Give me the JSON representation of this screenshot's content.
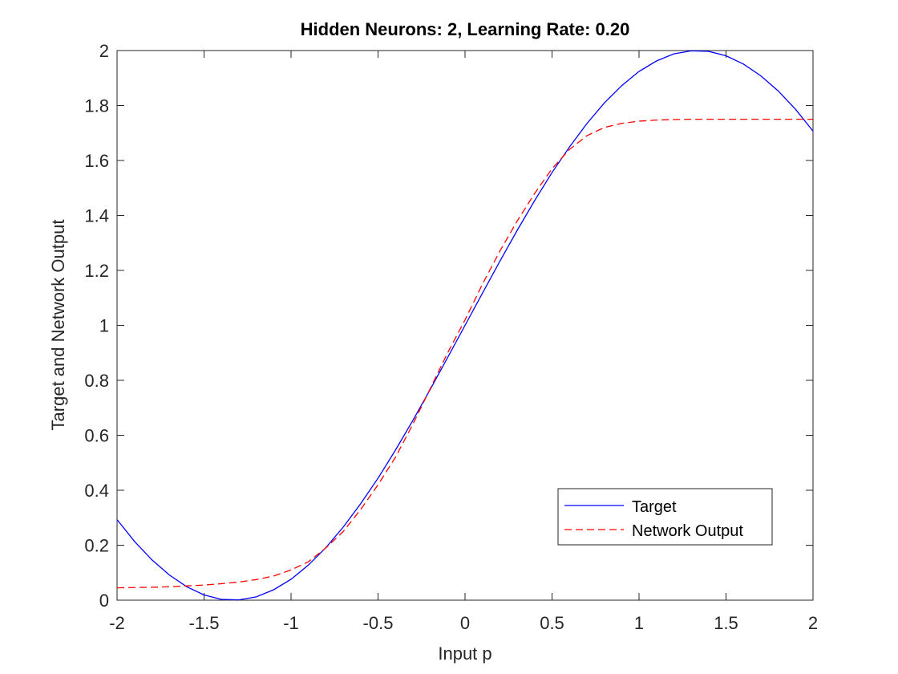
{
  "chart_data": {
    "type": "line",
    "title": "Hidden Neurons: 2, Learning Rate: 0.20",
    "x_label": "Input p",
    "y_label": "Target and Network Output",
    "x": [
      -2,
      -1.9,
      -1.8,
      -1.7,
      -1.6,
      -1.5,
      -1.4,
      -1.3,
      -1.2,
      -1.1,
      -1,
      -0.9,
      -0.8,
      -0.7,
      -0.6,
      -0.5,
      -0.4,
      -0.3,
      -0.2,
      -0.1,
      0,
      0.1,
      0.2,
      0.3,
      0.4,
      0.5,
      0.6,
      0.7,
      0.8,
      0.9,
      1,
      1.1,
      1.2,
      1.3,
      1.4,
      1.5,
      1.6,
      1.7,
      1.8,
      1.9,
      2
    ],
    "series": [
      {
        "name": "Target",
        "color": "#0000ff",
        "dash": false,
        "values": [
          0.293,
          0.214,
          0.147,
          0.092,
          0.049,
          0.019,
          0.003,
          0.001,
          0.012,
          0.038,
          0.076,
          0.128,
          0.191,
          0.266,
          0.351,
          0.444,
          0.546,
          0.654,
          0.767,
          0.883,
          1,
          1.117,
          1.233,
          1.346,
          1.454,
          1.556,
          1.649,
          1.734,
          1.809,
          1.872,
          1.924,
          1.962,
          1.988,
          1.999,
          1.997,
          1.981,
          1.951,
          1.908,
          1.853,
          1.786,
          1.707
        ]
      },
      {
        "name": "Network Output",
        "color": "#ff0000",
        "dash": true,
        "values": [
          0.045,
          0.046,
          0.047,
          0.049,
          0.052,
          0.055,
          0.06,
          0.066,
          0.075,
          0.088,
          0.11,
          0.14,
          0.19,
          0.25,
          0.33,
          0.42,
          0.52,
          0.64,
          0.77,
          0.9,
          1.02,
          1.15,
          1.27,
          1.38,
          1.48,
          1.57,
          1.64,
          1.69,
          1.72,
          1.735,
          1.743,
          1.747,
          1.749,
          1.75,
          1.75,
          1.75,
          1.75,
          1.75,
          1.75,
          1.75,
          1.75
        ]
      }
    ],
    "xlim": [
      -2,
      2
    ],
    "xticks": [
      -2,
      -1.5,
      -1,
      -0.5,
      0,
      0.5,
      1,
      1.5,
      2
    ],
    "ylim": [
      0,
      2
    ],
    "yticks": [
      0,
      0.2,
      0.4,
      0.6,
      0.8,
      1,
      1.2,
      1.4,
      1.6,
      1.8,
      2
    ],
    "grid": false,
    "legend": "southeast"
  }
}
